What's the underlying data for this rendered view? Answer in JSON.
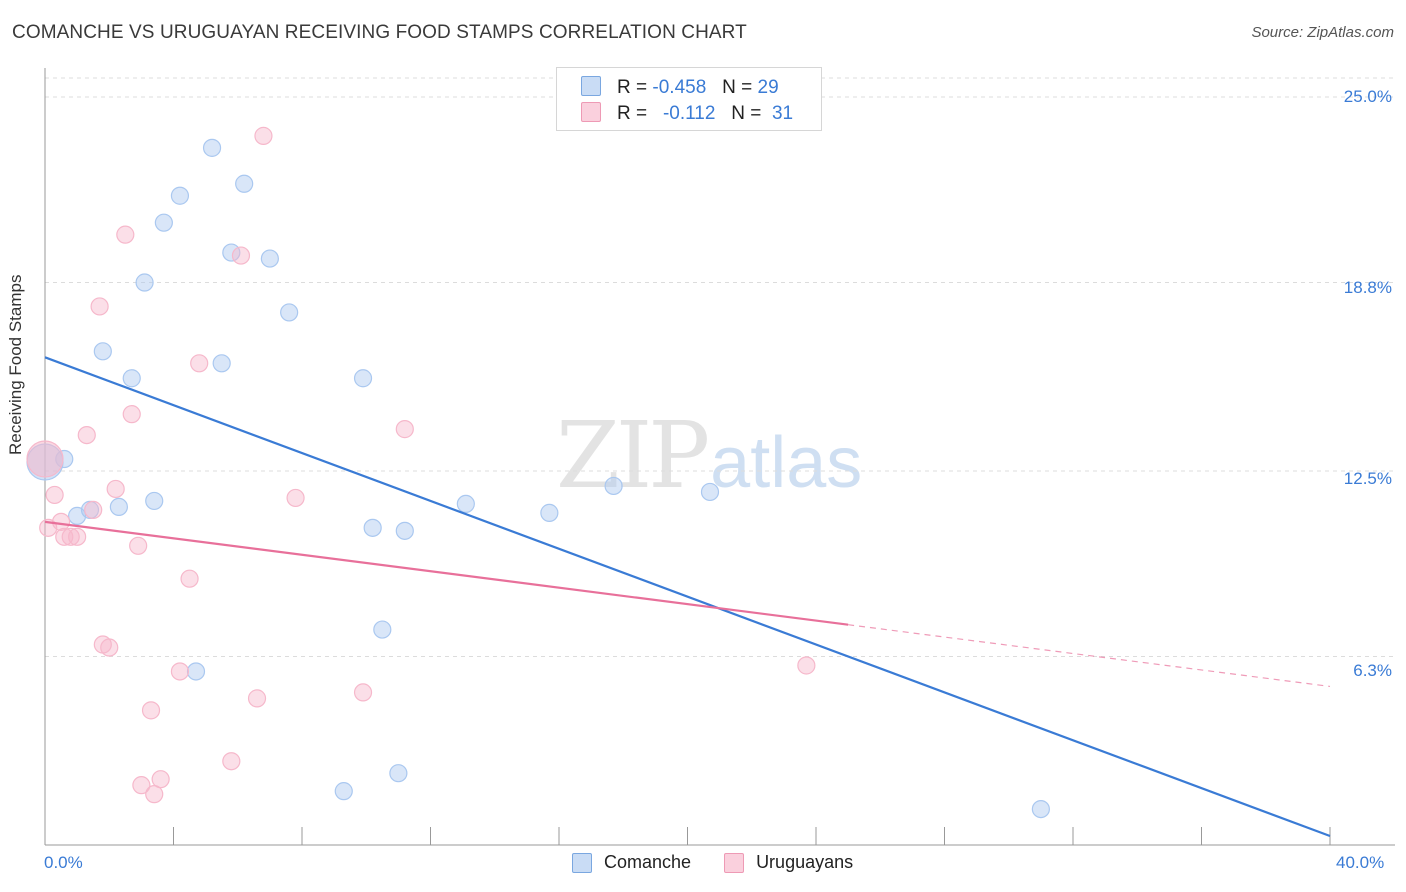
{
  "title": "COMANCHE VS URUGUAYAN RECEIVING FOOD STAMPS CORRELATION CHART",
  "source": "Source: ZipAtlas.com",
  "watermark": {
    "zip": "ZIP",
    "atlas": "atlas"
  },
  "stats": [
    {
      "r_label": "R =",
      "r_value": "-0.458",
      "n_label": "N =",
      "n_value": "29",
      "color": "#aac8f0"
    },
    {
      "r_label": "R =",
      "r_value": "-0.112",
      "n_label": "N =",
      "n_value": "31",
      "color": "#f6b8cb"
    }
  ],
  "legend": [
    {
      "label": "Comanche",
      "color": "#aac8f0"
    },
    {
      "label": "Uruguayans",
      "color": "#f6b8cb"
    }
  ],
  "chart_data": {
    "type": "scatter",
    "xlabel": "",
    "ylabel": "Receiving Food Stamps",
    "xlim": [
      0,
      40
    ],
    "ylim": [
      0,
      25
    ],
    "x_tick_labels": [
      "0.0%",
      "40.0%"
    ],
    "y_tick_labels": [
      "6.3%",
      "12.5%",
      "18.8%",
      "25.0%"
    ],
    "y_ticks": [
      6.3,
      12.5,
      18.8,
      25.0
    ],
    "grid": true,
    "series": [
      {
        "name": "Comanche",
        "color": "#3a7bd5",
        "fill": "#aac8f0",
        "points": [
          [
            0.0,
            12.8
          ],
          [
            0.6,
            12.9
          ],
          [
            1.0,
            11.0
          ],
          [
            1.4,
            11.2
          ],
          [
            1.8,
            16.5
          ],
          [
            2.3,
            11.3
          ],
          [
            2.7,
            15.6
          ],
          [
            3.1,
            18.8
          ],
          [
            3.4,
            11.5
          ],
          [
            3.7,
            20.8
          ],
          [
            4.2,
            21.7
          ],
          [
            5.2,
            23.3
          ],
          [
            4.7,
            5.8
          ],
          [
            5.5,
            16.1
          ],
          [
            5.8,
            19.8
          ],
          [
            6.2,
            22.1
          ],
          [
            7.0,
            19.6
          ],
          [
            7.6,
            17.8
          ],
          [
            9.3,
            1.8
          ],
          [
            9.9,
            15.6
          ],
          [
            10.2,
            10.6
          ],
          [
            10.5,
            7.2
          ],
          [
            11.0,
            2.4
          ],
          [
            11.2,
            10.5
          ],
          [
            13.1,
            11.4
          ],
          [
            15.7,
            11.1
          ],
          [
            17.7,
            12.0
          ],
          [
            20.7,
            11.8
          ],
          [
            31.0,
            1.2
          ]
        ],
        "trend": {
          "x": [
            0,
            40
          ],
          "y": [
            16.3,
            0.3
          ],
          "dashed_from": null
        }
      },
      {
        "name": "Uruguayans",
        "color": "#e8709a",
        "fill": "#f6b8cb",
        "points": [
          [
            0.0,
            12.9
          ],
          [
            0.3,
            11.7
          ],
          [
            0.5,
            10.8
          ],
          [
            0.6,
            10.3
          ],
          [
            0.8,
            10.3
          ],
          [
            1.0,
            10.3
          ],
          [
            1.3,
            13.7
          ],
          [
            1.5,
            11.2
          ],
          [
            1.7,
            18.0
          ],
          [
            1.8,
            6.7
          ],
          [
            2.0,
            6.6
          ],
          [
            2.2,
            11.9
          ],
          [
            2.5,
            20.4
          ],
          [
            2.7,
            14.4
          ],
          [
            2.9,
            10.0
          ],
          [
            3.0,
            2.0
          ],
          [
            3.3,
            4.5
          ],
          [
            3.4,
            1.7
          ],
          [
            3.6,
            2.2
          ],
          [
            4.2,
            5.8
          ],
          [
            4.5,
            8.9
          ],
          [
            4.8,
            16.1
          ],
          [
            5.8,
            2.8
          ],
          [
            6.1,
            19.7
          ],
          [
            6.6,
            4.9
          ],
          [
            6.8,
            23.7
          ],
          [
            7.8,
            11.6
          ],
          [
            9.9,
            5.1
          ],
          [
            11.2,
            13.9
          ],
          [
            23.7,
            6.0
          ],
          [
            0.1,
            10.6
          ]
        ],
        "trend": {
          "x": [
            0,
            40
          ],
          "y": [
            10.8,
            5.3
          ],
          "dashed_from": 25
        }
      }
    ]
  }
}
